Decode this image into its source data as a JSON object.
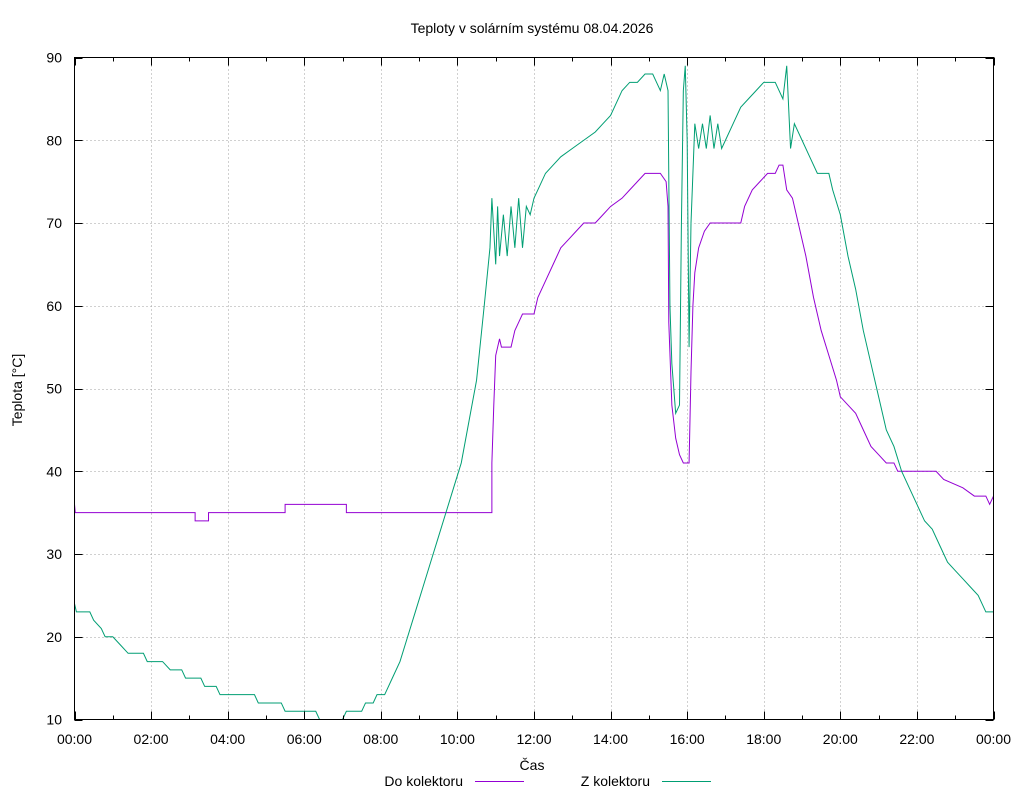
{
  "chart_data": {
    "type": "line",
    "title": "Teploty v solárním systému 08.04.2026",
    "xlabel": "Čas",
    "ylabel": "Teplota [°C]",
    "xlim": [
      0,
      24
    ],
    "ylim": [
      10,
      90
    ],
    "grid": true,
    "legend_position": "bottom",
    "x_ticks": [
      {
        "v": 0,
        "label": "00:00"
      },
      {
        "v": 2,
        "label": "02:00"
      },
      {
        "v": 4,
        "label": "04:00"
      },
      {
        "v": 6,
        "label": "06:00"
      },
      {
        "v": 8,
        "label": "08:00"
      },
      {
        "v": 10,
        "label": "10:00"
      },
      {
        "v": 12,
        "label": "12:00"
      },
      {
        "v": 14,
        "label": "14:00"
      },
      {
        "v": 16,
        "label": "16:00"
      },
      {
        "v": 18,
        "label": "18:00"
      },
      {
        "v": 20,
        "label": "20:00"
      },
      {
        "v": 22,
        "label": "22:00"
      },
      {
        "v": 24,
        "label": "00:00"
      }
    ],
    "y_ticks": [
      {
        "v": 10,
        "label": "10"
      },
      {
        "v": 20,
        "label": "20"
      },
      {
        "v": 30,
        "label": "30"
      },
      {
        "v": 40,
        "label": "40"
      },
      {
        "v": 50,
        "label": "50"
      },
      {
        "v": 60,
        "label": "60"
      },
      {
        "v": 70,
        "label": "70"
      },
      {
        "v": 80,
        "label": "80"
      },
      {
        "v": 90,
        "label": "90"
      }
    ],
    "series": [
      {
        "name": "Do kolektoru",
        "color": "#9400d3",
        "points": [
          [
            0.0,
            36
          ],
          [
            0.02,
            35
          ],
          [
            3.15,
            35
          ],
          [
            3.15,
            34
          ],
          [
            3.5,
            34
          ],
          [
            3.5,
            35
          ],
          [
            5.5,
            35
          ],
          [
            5.5,
            36
          ],
          [
            7.1,
            36
          ],
          [
            7.1,
            35
          ],
          [
            10.9,
            35
          ],
          [
            10.9,
            41
          ],
          [
            10.95,
            48
          ],
          [
            11.0,
            54
          ],
          [
            11.1,
            56
          ],
          [
            11.15,
            55
          ],
          [
            11.4,
            55
          ],
          [
            11.5,
            57
          ],
          [
            11.6,
            58
          ],
          [
            11.7,
            59
          ],
          [
            12.0,
            59
          ],
          [
            12.1,
            61
          ],
          [
            12.3,
            63
          ],
          [
            12.5,
            65
          ],
          [
            12.7,
            67
          ],
          [
            12.9,
            68
          ],
          [
            13.1,
            69
          ],
          [
            13.3,
            70
          ],
          [
            13.6,
            70
          ],
          [
            13.8,
            71
          ],
          [
            14.0,
            72
          ],
          [
            14.3,
            73
          ],
          [
            14.5,
            74
          ],
          [
            14.7,
            75
          ],
          [
            14.9,
            76
          ],
          [
            15.1,
            76
          ],
          [
            15.3,
            76
          ],
          [
            15.45,
            75
          ],
          [
            15.5,
            72
          ],
          [
            15.52,
            58
          ],
          [
            15.6,
            48
          ],
          [
            15.7,
            44
          ],
          [
            15.8,
            42
          ],
          [
            15.9,
            41
          ],
          [
            16.05,
            41
          ],
          [
            16.1,
            52
          ],
          [
            16.15,
            60
          ],
          [
            16.2,
            64
          ],
          [
            16.3,
            67
          ],
          [
            16.45,
            69
          ],
          [
            16.6,
            70
          ],
          [
            17.0,
            70
          ],
          [
            17.4,
            70
          ],
          [
            17.5,
            72
          ],
          [
            17.7,
            74
          ],
          [
            17.9,
            75
          ],
          [
            18.1,
            76
          ],
          [
            18.3,
            76
          ],
          [
            18.4,
            77
          ],
          [
            18.5,
            77
          ],
          [
            18.6,
            74
          ],
          [
            18.75,
            73
          ],
          [
            18.9,
            70
          ],
          [
            19.1,
            66
          ],
          [
            19.3,
            61
          ],
          [
            19.5,
            57
          ],
          [
            19.7,
            54
          ],
          [
            19.9,
            51
          ],
          [
            20.0,
            49
          ],
          [
            20.2,
            48
          ],
          [
            20.4,
            47
          ],
          [
            20.6,
            45
          ],
          [
            20.8,
            43
          ],
          [
            21.0,
            42
          ],
          [
            21.2,
            41
          ],
          [
            21.4,
            41
          ],
          [
            21.5,
            40
          ],
          [
            22.5,
            40
          ],
          [
            22.7,
            39
          ],
          [
            23.2,
            38
          ],
          [
            23.5,
            37
          ],
          [
            23.8,
            37
          ],
          [
            23.9,
            36
          ],
          [
            24.0,
            37
          ]
        ]
      },
      {
        "name": "Z kolektoru",
        "color": "#009e73",
        "points": [
          [
            0.0,
            24
          ],
          [
            0.05,
            23
          ],
          [
            0.4,
            23
          ],
          [
            0.5,
            22
          ],
          [
            0.7,
            21
          ],
          [
            0.8,
            20
          ],
          [
            1.0,
            20
          ],
          [
            1.2,
            19
          ],
          [
            1.4,
            18
          ],
          [
            1.8,
            18
          ],
          [
            1.9,
            17
          ],
          [
            2.3,
            17
          ],
          [
            2.5,
            16
          ],
          [
            2.8,
            16
          ],
          [
            2.9,
            15
          ],
          [
            3.3,
            15
          ],
          [
            3.4,
            14
          ],
          [
            3.7,
            14
          ],
          [
            3.8,
            13
          ],
          [
            4.7,
            13
          ],
          [
            4.8,
            12
          ],
          [
            5.4,
            12
          ],
          [
            5.5,
            11
          ],
          [
            6.3,
            11
          ],
          [
            6.4,
            10
          ],
          [
            7.0,
            10
          ],
          [
            7.1,
            11
          ],
          [
            7.5,
            11
          ],
          [
            7.6,
            12
          ],
          [
            7.8,
            12
          ],
          [
            7.9,
            13
          ],
          [
            8.1,
            13
          ],
          [
            8.3,
            15
          ],
          [
            8.5,
            17
          ],
          [
            8.7,
            20
          ],
          [
            8.9,
            23
          ],
          [
            9.1,
            26
          ],
          [
            9.3,
            29
          ],
          [
            9.5,
            32
          ],
          [
            9.7,
            35
          ],
          [
            9.9,
            38
          ],
          [
            10.1,
            41
          ],
          [
            10.3,
            46
          ],
          [
            10.5,
            51
          ],
          [
            10.7,
            60
          ],
          [
            10.85,
            67
          ],
          [
            10.9,
            73
          ],
          [
            11.0,
            65
          ],
          [
            11.05,
            72
          ],
          [
            11.1,
            66
          ],
          [
            11.2,
            71
          ],
          [
            11.3,
            66
          ],
          [
            11.4,
            72
          ],
          [
            11.5,
            67
          ],
          [
            11.6,
            73
          ],
          [
            11.7,
            67
          ],
          [
            11.8,
            72
          ],
          [
            11.9,
            71
          ],
          [
            12.0,
            73
          ],
          [
            12.1,
            74
          ],
          [
            12.3,
            76
          ],
          [
            12.5,
            77
          ],
          [
            12.7,
            78
          ],
          [
            13.0,
            79
          ],
          [
            13.3,
            80
          ],
          [
            13.6,
            81
          ],
          [
            13.8,
            82
          ],
          [
            14.0,
            83
          ],
          [
            14.1,
            84
          ],
          [
            14.3,
            86
          ],
          [
            14.5,
            87
          ],
          [
            14.7,
            87
          ],
          [
            14.9,
            88
          ],
          [
            15.1,
            88
          ],
          [
            15.2,
            87
          ],
          [
            15.3,
            86
          ],
          [
            15.4,
            88
          ],
          [
            15.5,
            86
          ],
          [
            15.55,
            60
          ],
          [
            15.6,
            53
          ],
          [
            15.7,
            47
          ],
          [
            15.8,
            48
          ],
          [
            15.85,
            70
          ],
          [
            15.9,
            86
          ],
          [
            15.95,
            89
          ],
          [
            16.0,
            80
          ],
          [
            16.05,
            55
          ],
          [
            16.1,
            70
          ],
          [
            16.2,
            82
          ],
          [
            16.3,
            79
          ],
          [
            16.4,
            82
          ],
          [
            16.5,
            79
          ],
          [
            16.6,
            83
          ],
          [
            16.7,
            79
          ],
          [
            16.8,
            82
          ],
          [
            16.9,
            79
          ],
          [
            17.0,
            80
          ],
          [
            17.2,
            82
          ],
          [
            17.4,
            84
          ],
          [
            17.6,
            85
          ],
          [
            17.8,
            86
          ],
          [
            18.0,
            87
          ],
          [
            18.3,
            87
          ],
          [
            18.5,
            85
          ],
          [
            18.6,
            89
          ],
          [
            18.7,
            79
          ],
          [
            18.8,
            82
          ],
          [
            19.0,
            80
          ],
          [
            19.2,
            78
          ],
          [
            19.4,
            76
          ],
          [
            19.7,
            76
          ],
          [
            19.8,
            74
          ],
          [
            20.0,
            71
          ],
          [
            20.2,
            66
          ],
          [
            20.4,
            62
          ],
          [
            20.6,
            57
          ],
          [
            20.8,
            53
          ],
          [
            21.0,
            49
          ],
          [
            21.2,
            45
          ],
          [
            21.4,
            43
          ],
          [
            21.6,
            40
          ],
          [
            21.8,
            38
          ],
          [
            22.0,
            36
          ],
          [
            22.2,
            34
          ],
          [
            22.4,
            33
          ],
          [
            22.6,
            31
          ],
          [
            22.8,
            29
          ],
          [
            23.0,
            28
          ],
          [
            23.2,
            27
          ],
          [
            23.4,
            26
          ],
          [
            23.6,
            25
          ],
          [
            23.8,
            23
          ],
          [
            24.0,
            23
          ]
        ]
      }
    ]
  }
}
